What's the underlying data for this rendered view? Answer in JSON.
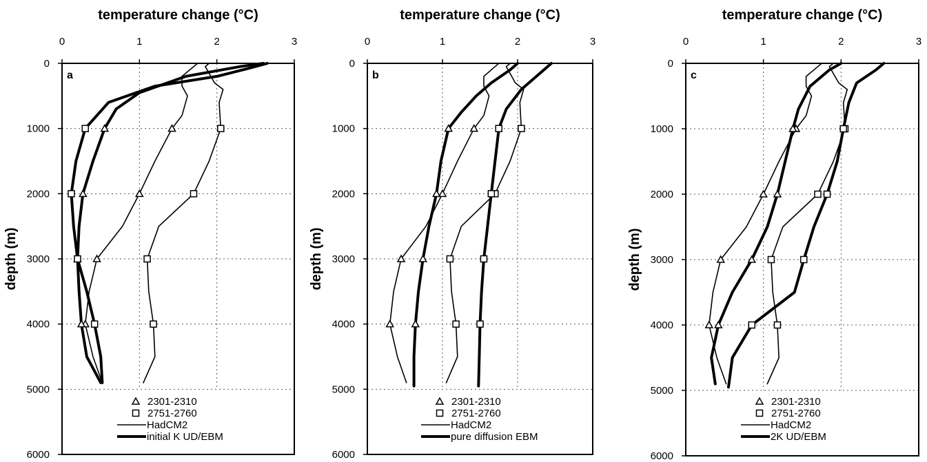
{
  "chart_data": [
    {
      "type": "line",
      "panel_label": "a",
      "title": "temperature change (°C)",
      "xlabel": "temperature change (°C)",
      "ylabel": "depth (m)",
      "xlim": [
        0,
        3
      ],
      "ylim": [
        6000,
        0
      ],
      "x_ticks": [
        "0",
        "1",
        "2",
        "3"
      ],
      "y_ticks": [
        "0",
        "1000",
        "2000",
        "3000",
        "4000",
        "5000",
        "6000"
      ],
      "grid": true,
      "legend_position": "bottom",
      "legend": [
        {
          "label": "2301-2310",
          "marker": "triangle"
        },
        {
          "label": "2751-2760",
          "marker": "square"
        },
        {
          "label": "HadCM2",
          "style": "thin-line"
        },
        {
          "label": "initial K UD/EBM",
          "style": "thick-line"
        }
      ],
      "series": [
        {
          "group": "2301-2310",
          "model": "HadCM2",
          "points": [
            [
              1.75,
              0
            ],
            [
              1.7,
              50
            ],
            [
              1.55,
              200
            ],
            [
              1.55,
              350
            ],
            [
              1.62,
              500
            ],
            [
              1.55,
              800
            ],
            [
              1.42,
              1000
            ],
            [
              1.2,
              1500
            ],
            [
              1.0,
              2000
            ],
            [
              0.78,
              2500
            ],
            [
              0.45,
              3000
            ],
            [
              0.35,
              3500
            ],
            [
              0.3,
              4000
            ],
            [
              0.4,
              4500
            ],
            [
              0.52,
              4900
            ]
          ]
        },
        {
          "group": "2751-2760",
          "model": "HadCM2",
          "points": [
            [
              1.9,
              0
            ],
            [
              1.85,
              50
            ],
            [
              1.97,
              300
            ],
            [
              2.08,
              400
            ],
            [
              2.03,
              600
            ],
            [
              2.05,
              1000
            ],
            [
              1.9,
              1500
            ],
            [
              1.7,
              2000
            ],
            [
              1.25,
              2500
            ],
            [
              1.1,
              3000
            ],
            [
              1.12,
              3500
            ],
            [
              1.18,
              4000
            ],
            [
              1.2,
              4500
            ],
            [
              1.05,
              4900
            ]
          ]
        },
        {
          "group": "2301-2310",
          "model": "initial K UD/EBM",
          "points": [
            [
              2.6,
              0
            ],
            [
              2.3,
              50
            ],
            [
              1.6,
              200
            ],
            [
              1.0,
              450
            ],
            [
              0.7,
              700
            ],
            [
              0.55,
              1000
            ],
            [
              0.4,
              1500
            ],
            [
              0.27,
              2000
            ],
            [
              0.22,
              2500
            ],
            [
              0.2,
              3000
            ],
            [
              0.22,
              3500
            ],
            [
              0.25,
              4000
            ],
            [
              0.32,
              4500
            ],
            [
              0.5,
              4900
            ]
          ]
        },
        {
          "group": "2751-2760",
          "model": "initial K UD/EBM",
          "points": [
            [
              2.65,
              0
            ],
            [
              2.4,
              80
            ],
            [
              2.0,
              200
            ],
            [
              1.2,
              350
            ],
            [
              0.6,
              600
            ],
            [
              0.3,
              1000
            ],
            [
              0.18,
              1500
            ],
            [
              0.12,
              2000
            ],
            [
              0.15,
              2500
            ],
            [
              0.2,
              3000
            ],
            [
              0.32,
              3500
            ],
            [
              0.42,
              4000
            ],
            [
              0.5,
              4500
            ],
            [
              0.52,
              4900
            ]
          ]
        }
      ]
    },
    {
      "type": "line",
      "panel_label": "b",
      "title": "temperature change (°C)",
      "xlabel": "temperature change (°C)",
      "ylabel": "depth (m)",
      "xlim": [
        0,
        3
      ],
      "ylim": [
        6000,
        0
      ],
      "x_ticks": [
        "0",
        "1",
        "2",
        "3"
      ],
      "y_ticks": [
        "0",
        "1000",
        "2000",
        "3000",
        "4000",
        "5000",
        "6000"
      ],
      "grid": true,
      "legend_position": "bottom",
      "legend": [
        {
          "label": "2301-2310",
          "marker": "triangle"
        },
        {
          "label": "2751-2760",
          "marker": "square"
        },
        {
          "label": "HadCM2",
          "style": "thin-line"
        },
        {
          "label": "pure diffusion EBM",
          "style": "thick-line"
        }
      ],
      "series": [
        {
          "group": "2301-2310",
          "model": "HadCM2",
          "points": [
            [
              1.75,
              0
            ],
            [
              1.7,
              50
            ],
            [
              1.55,
              200
            ],
            [
              1.55,
              350
            ],
            [
              1.62,
              500
            ],
            [
              1.55,
              800
            ],
            [
              1.42,
              1000
            ],
            [
              1.2,
              1500
            ],
            [
              1.0,
              2000
            ],
            [
              0.78,
              2500
            ],
            [
              0.45,
              3000
            ],
            [
              0.35,
              3500
            ],
            [
              0.3,
              4000
            ],
            [
              0.4,
              4500
            ],
            [
              0.52,
              4900
            ]
          ]
        },
        {
          "group": "2751-2760",
          "model": "HadCM2",
          "points": [
            [
              1.9,
              0
            ],
            [
              1.85,
              50
            ],
            [
              1.97,
              300
            ],
            [
              2.08,
              400
            ],
            [
              2.03,
              600
            ],
            [
              2.05,
              1000
            ],
            [
              1.9,
              1500
            ],
            [
              1.7,
              2000
            ],
            [
              1.25,
              2500
            ],
            [
              1.1,
              3000
            ],
            [
              1.12,
              3500
            ],
            [
              1.18,
              4000
            ],
            [
              1.2,
              4500
            ],
            [
              1.05,
              4900
            ]
          ]
        },
        {
          "group": "2301-2310",
          "model": "pure diffusion EBM",
          "points": [
            [
              2.0,
              0
            ],
            [
              1.9,
              100
            ],
            [
              1.65,
              300
            ],
            [
              1.45,
              500
            ],
            [
              1.25,
              750
            ],
            [
              1.08,
              1000
            ],
            [
              0.98,
              1500
            ],
            [
              0.92,
              2000
            ],
            [
              0.82,
              2500
            ],
            [
              0.74,
              3000
            ],
            [
              0.68,
              3500
            ],
            [
              0.64,
              4000
            ],
            [
              0.62,
              4500
            ],
            [
              0.62,
              4950
            ]
          ]
        },
        {
          "group": "2751-2760",
          "model": "pure diffusion EBM",
          "points": [
            [
              2.45,
              0
            ],
            [
              2.35,
              100
            ],
            [
              2.05,
              400
            ],
            [
              1.85,
              700
            ],
            [
              1.75,
              1000
            ],
            [
              1.7,
              1500
            ],
            [
              1.65,
              2000
            ],
            [
              1.6,
              2500
            ],
            [
              1.55,
              3000
            ],
            [
              1.52,
              3500
            ],
            [
              1.5,
              4000
            ],
            [
              1.49,
              4500
            ],
            [
              1.48,
              4950
            ]
          ]
        }
      ]
    },
    {
      "type": "line",
      "panel_label": "c",
      "title": "temperature change (°C)",
      "xlabel": "temperature change (°C)",
      "ylabel": "depth (m)",
      "xlim": [
        0,
        3
      ],
      "ylim": [
        6000,
        0
      ],
      "x_ticks": [
        "0",
        "1",
        "2",
        "3"
      ],
      "y_ticks": [
        "0",
        "1000",
        "2000",
        "3000",
        "4000",
        "5000",
        "6000"
      ],
      "grid": true,
      "legend_position": "bottom",
      "legend": [
        {
          "label": "2301-2310",
          "marker": "triangle"
        },
        {
          "label": "2751-2760",
          "marker": "square"
        },
        {
          "label": "HadCM2",
          "style": "thin-line"
        },
        {
          "label": "2K UD/EBM",
          "style": "thick-line"
        }
      ],
      "series": [
        {
          "group": "2301-2310",
          "model": "HadCM2",
          "points": [
            [
              1.75,
              0
            ],
            [
              1.7,
              50
            ],
            [
              1.55,
              200
            ],
            [
              1.55,
              350
            ],
            [
              1.62,
              500
            ],
            [
              1.55,
              800
            ],
            [
              1.42,
              1000
            ],
            [
              1.2,
              1500
            ],
            [
              1.0,
              2000
            ],
            [
              0.78,
              2500
            ],
            [
              0.45,
              3000
            ],
            [
              0.35,
              3500
            ],
            [
              0.3,
              4000
            ],
            [
              0.4,
              4500
            ],
            [
              0.52,
              4900
            ]
          ]
        },
        {
          "group": "2751-2760",
          "model": "HadCM2",
          "points": [
            [
              1.9,
              0
            ],
            [
              1.85,
              50
            ],
            [
              1.97,
              300
            ],
            [
              2.08,
              400
            ],
            [
              2.03,
              600
            ],
            [
              2.05,
              1000
            ],
            [
              1.9,
              1500
            ],
            [
              1.7,
              2000
            ],
            [
              1.25,
              2500
            ],
            [
              1.1,
              3000
            ],
            [
              1.12,
              3500
            ],
            [
              1.18,
              4000
            ],
            [
              1.2,
              4500
            ],
            [
              1.05,
              4900
            ]
          ]
        },
        {
          "group": "2301-2310",
          "model": "2K UD/EBM",
          "points": [
            [
              2.0,
              0
            ],
            [
              1.85,
              100
            ],
            [
              1.6,
              350
            ],
            [
              1.45,
              700
            ],
            [
              1.38,
              1000
            ],
            [
              1.28,
              1500
            ],
            [
              1.18,
              2000
            ],
            [
              1.05,
              2500
            ],
            [
              0.85,
              3000
            ],
            [
              0.6,
              3500
            ],
            [
              0.42,
              4000
            ],
            [
              0.33,
              4500
            ],
            [
              0.38,
              4900
            ]
          ]
        },
        {
          "group": "2751-2760",
          "model": "2K UD/EBM",
          "points": [
            [
              2.55,
              0
            ],
            [
              2.45,
              100
            ],
            [
              2.2,
              300
            ],
            [
              2.1,
              600
            ],
            [
              2.03,
              1000
            ],
            [
              1.95,
              1500
            ],
            [
              1.82,
              2000
            ],
            [
              1.65,
              2500
            ],
            [
              1.52,
              3000
            ],
            [
              1.4,
              3500
            ],
            [
              0.85,
              4000
            ],
            [
              0.6,
              4500
            ],
            [
              0.55,
              4950
            ]
          ]
        }
      ]
    }
  ]
}
